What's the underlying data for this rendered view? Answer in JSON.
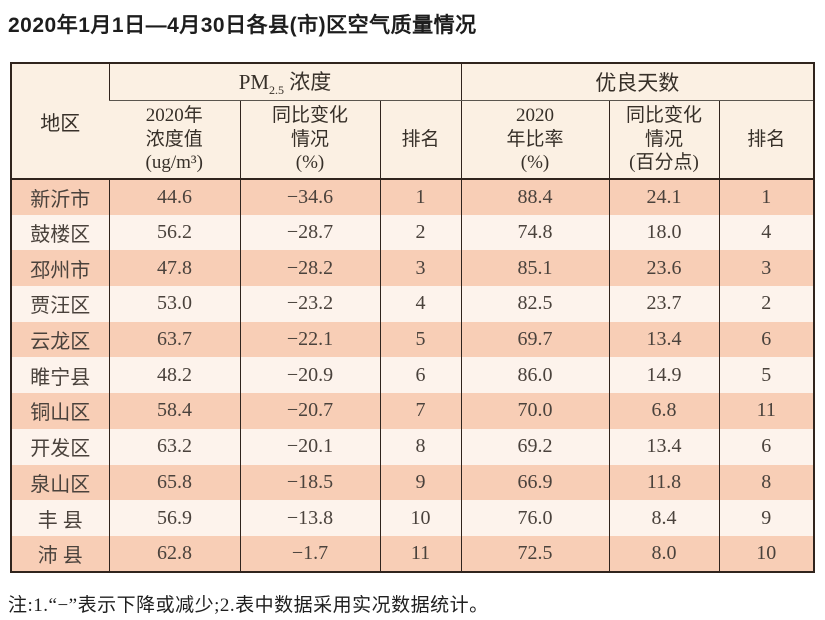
{
  "page": {
    "title": "2020年1月1日—4月30日各县(市)区空气质量情况",
    "footnote": "注:1.“−”表示下降或减少;2.表中数据采用实况数据统计。"
  },
  "colors": {
    "row_odd": "#f8ceb6",
    "row_even": "#fdf3ec",
    "header_bg": "#fbf0e3",
    "border_dark": "#30241d",
    "text_main": "#413a34"
  },
  "table": {
    "region_header": "地区",
    "group_pm": {
      "main": "PM",
      "sub": "2.5",
      "rest": " 浓度"
    },
    "group_good": "优良天数",
    "subheaders": {
      "pm_value": [
        "2020年",
        "浓度值",
        "(ug/m³)"
      ],
      "pm_change": [
        "同比变化",
        "情况",
        "(%)"
      ],
      "pm_rank": [
        "排名"
      ],
      "good_rate": [
        "2020",
        "年比率",
        "(%)"
      ],
      "good_change": [
        "同比变化",
        "情况",
        "(百分点)"
      ],
      "good_rank": [
        "排名"
      ]
    },
    "row_keys": [
      "region",
      "pm_value",
      "pm_change",
      "pm_rank",
      "good_rate",
      "good_change",
      "good_rank"
    ],
    "rows": [
      {
        "region": "新沂市",
        "pm_value": "44.6",
        "pm_change": "−34.6",
        "pm_rank": "1",
        "good_rate": "88.4",
        "good_change": "24.1",
        "good_rank": "1"
      },
      {
        "region": "鼓楼区",
        "pm_value": "56.2",
        "pm_change": "−28.7",
        "pm_rank": "2",
        "good_rate": "74.8",
        "good_change": "18.0",
        "good_rank": "4"
      },
      {
        "region": "邳州市",
        "pm_value": "47.8",
        "pm_change": "−28.2",
        "pm_rank": "3",
        "good_rate": "85.1",
        "good_change": "23.6",
        "good_rank": "3"
      },
      {
        "region": "贾汪区",
        "pm_value": "53.0",
        "pm_change": "−23.2",
        "pm_rank": "4",
        "good_rate": "82.5",
        "good_change": "23.7",
        "good_rank": "2"
      },
      {
        "region": "云龙区",
        "pm_value": "63.7",
        "pm_change": "−22.1",
        "pm_rank": "5",
        "good_rate": "69.7",
        "good_change": "13.4",
        "good_rank": "6"
      },
      {
        "region": "睢宁县",
        "pm_value": "48.2",
        "pm_change": "−20.9",
        "pm_rank": "6",
        "good_rate": "86.0",
        "good_change": "14.9",
        "good_rank": "5"
      },
      {
        "region": "铜山区",
        "pm_value": "58.4",
        "pm_change": "−20.7",
        "pm_rank": "7",
        "good_rate": "70.0",
        "good_change": "6.8",
        "good_rank": "11"
      },
      {
        "region": "开发区",
        "pm_value": "63.2",
        "pm_change": "−20.1",
        "pm_rank": "8",
        "good_rate": "69.2",
        "good_change": "13.4",
        "good_rank": "6"
      },
      {
        "region": "泉山区",
        "pm_value": "65.8",
        "pm_change": "−18.5",
        "pm_rank": "9",
        "good_rate": "66.9",
        "good_change": "11.8",
        "good_rank": "8"
      },
      {
        "region": "丰 县",
        "pm_value": "56.9",
        "pm_change": "−13.8",
        "pm_rank": "10",
        "good_rate": "76.0",
        "good_change": "8.4",
        "good_rank": "9"
      },
      {
        "region": "沛 县",
        "pm_value": "62.8",
        "pm_change": "−1.7",
        "pm_rank": "11",
        "good_rate": "72.5",
        "good_change": "8.0",
        "good_rank": "10"
      }
    ]
  }
}
